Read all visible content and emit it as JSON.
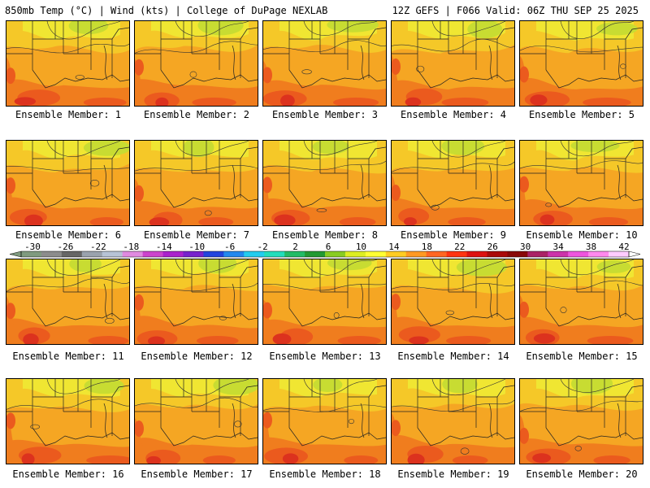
{
  "header": {
    "left": "850mb Temp (°C) | Wind (kts) | College of DuPage NEXLAB",
    "right": "12Z GEFS | F066 Valid: 06Z THU SEP 25 2025"
  },
  "panels": [
    {
      "label": "Ensemble Member: 1"
    },
    {
      "label": "Ensemble Member: 2"
    },
    {
      "label": "Ensemble Member: 3"
    },
    {
      "label": "Ensemble Member: 4"
    },
    {
      "label": "Ensemble Member: 5"
    },
    {
      "label": "Ensemble Member: 6"
    },
    {
      "label": "Ensemble Member: 7"
    },
    {
      "label": "Ensemble Member: 8"
    },
    {
      "label": "Ensemble Member: 9"
    },
    {
      "label": "Ensemble Member: 10"
    },
    {
      "label": "Ensemble Member: 11"
    },
    {
      "label": "Ensemble Member: 12"
    },
    {
      "label": "Ensemble Member: 13"
    },
    {
      "label": "Ensemble Member: 14"
    },
    {
      "label": "Ensemble Member: 15"
    },
    {
      "label": "Ensemble Member: 16"
    },
    {
      "label": "Ensemble Member: 17"
    },
    {
      "label": "Ensemble Member: 18"
    },
    {
      "label": "Ensemble Member: 19"
    },
    {
      "label": "Ensemble Member: 20"
    }
  ],
  "colorbar": {
    "ticks": [
      "-30",
      "-26",
      "-22",
      "-18",
      "-14",
      "-10",
      "-6",
      "-2",
      "2",
      "6",
      "10",
      "14",
      "18",
      "22",
      "26",
      "30",
      "34",
      "38",
      "42"
    ],
    "colors": [
      "#7f9a7f",
      "#8c8c8c",
      "#666666",
      "#9aa2ad",
      "#b7c3d6",
      "#e08ae0",
      "#cc44cc",
      "#aa22cc",
      "#7722cc",
      "#2244dd",
      "#2288ee",
      "#22ccee",
      "#22ddbb",
      "#22bb66",
      "#229933",
      "#88cc22",
      "#ddee22",
      "#ffff33",
      "#ffcc22",
      "#ff9922",
      "#ff6622",
      "#ff3311",
      "#dd1111",
      "#aa0a0a",
      "#880808",
      "#aa2266",
      "#cc33aa",
      "#ee55dd",
      "#ff88ee",
      "#ffccff"
    ]
  },
  "map_colors": {
    "yellow_green": "#c8dc32",
    "yellow": "#f0e632",
    "light_orange": "#f5c828",
    "orange": "#f5a623",
    "dark_orange": "#f07d1e",
    "red_orange": "#eb5a1e",
    "red": "#dc321e"
  }
}
